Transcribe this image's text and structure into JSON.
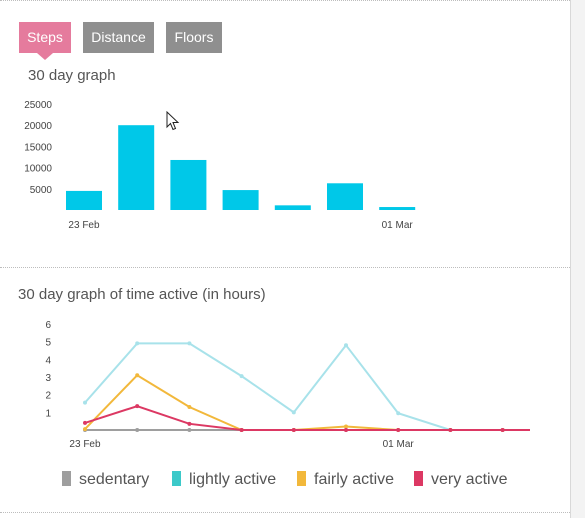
{
  "tabs": [
    {
      "label": "Steps",
      "active": true
    },
    {
      "label": "Distance",
      "active": false
    },
    {
      "label": "Floors",
      "active": false
    }
  ],
  "steps_section": {
    "title": "30 day graph"
  },
  "active_section": {
    "title": "30 day graph of time active (in hours)"
  },
  "colors": {
    "tab_active": "#e57b9d",
    "tab_inactive": "#8f8f8f",
    "steps_bar": "#00c8e8",
    "sedentary": "#9e9e9e",
    "lightly_active": "#a8e2ea",
    "fairly_active": "#f2b83b",
    "very_active": "#dc3863"
  },
  "chart_data": [
    {
      "type": "bar",
      "yticks": [
        5000,
        10000,
        15000,
        20000,
        25000
      ],
      "ylim": [
        0,
        25000
      ],
      "xtick_labels": [
        "23 Feb",
        "01 Mar"
      ],
      "values": [
        4500,
        20000,
        11800,
        4700,
        1100,
        6300,
        700
      ],
      "grid": false
    },
    {
      "type": "line",
      "yticks": [
        1,
        2,
        3,
        4,
        5,
        6
      ],
      "ylim": [
        0,
        6
      ],
      "xtick_labels": [
        "23 Feb",
        "01 Mar"
      ],
      "series": [
        {
          "name": "sedentary",
          "values": [
            0,
            0,
            0,
            0,
            0,
            0,
            0,
            0,
            0,
            0,
            0
          ]
        },
        {
          "name": "lightly active",
          "values": [
            1.55,
            4.9,
            4.9,
            3.05,
            1.0,
            4.8,
            0.95,
            0,
            0,
            0,
            0
          ]
        },
        {
          "name": "fairly active",
          "values": [
            0.05,
            3.1,
            1.3,
            0,
            0,
            0.2,
            0,
            0,
            0,
            0,
            0
          ]
        },
        {
          "name": "very active",
          "values": [
            0.4,
            1.35,
            0.35,
            0,
            0,
            0,
            0,
            0,
            0,
            0,
            0
          ]
        }
      ],
      "legend_position": "bottom",
      "grid": false
    }
  ],
  "icons": {
    "cursor": "pointer-cursor-icon"
  }
}
